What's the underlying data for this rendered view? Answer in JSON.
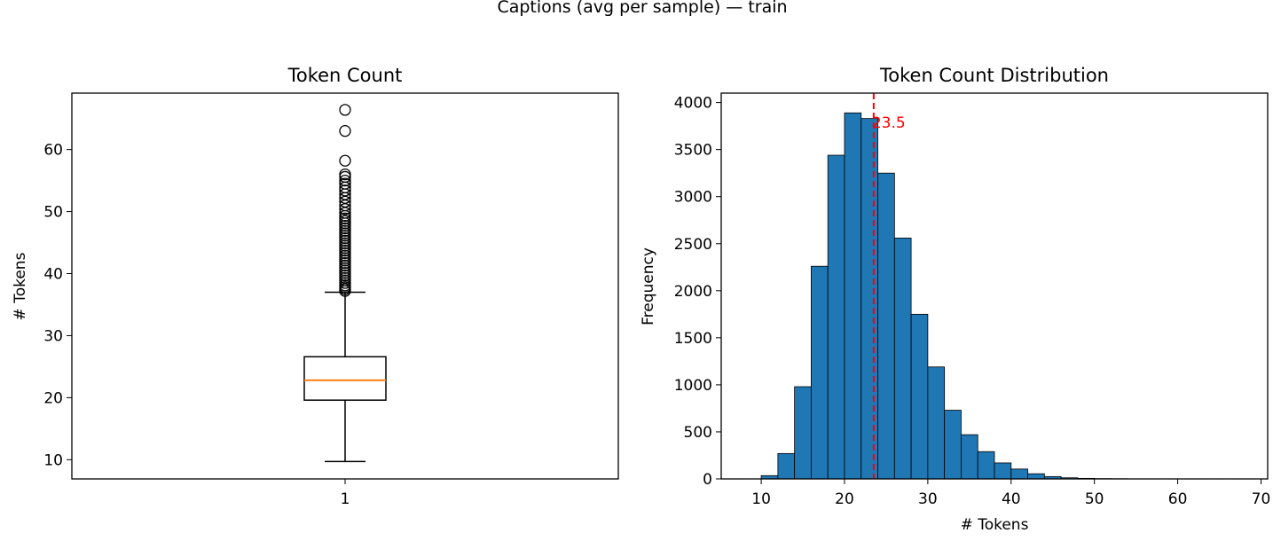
{
  "figure": {
    "suptitle": "Captions (avg per sample) — train"
  },
  "chart_data": [
    {
      "type": "box",
      "title": "Token Count",
      "xlabel": "",
      "ylabel": "# Tokens",
      "categories": [
        "1"
      ],
      "ylim": [
        6.9,
        69.1
      ],
      "yticks": [
        10,
        20,
        30,
        40,
        50,
        60
      ],
      "box": {
        "whisker_low": 9.7,
        "q1": 19.6,
        "median": 22.8,
        "q3": 26.6,
        "whisker_high": 37.0
      },
      "outliers": [
        37.2,
        37.5,
        37.8,
        38.1,
        38.5,
        38.9,
        39.3,
        39.7,
        40.1,
        40.5,
        40.9,
        41.3,
        41.7,
        42.1,
        42.5,
        42.9,
        43.3,
        43.7,
        44.1,
        44.5,
        44.9,
        45.3,
        45.7,
        46.1,
        46.5,
        46.9,
        47.3,
        47.7,
        48.1,
        48.5,
        48.9,
        49.3,
        49.8,
        50.4,
        51.0,
        51.6,
        52.2,
        52.8,
        53.4,
        53.9,
        54.5,
        55.0,
        55.6,
        56.0,
        58.2,
        63.0,
        66.4
      ],
      "colors": {
        "box": "#000000",
        "median": "#ff7f0e"
      }
    },
    {
      "type": "histogram",
      "title": "Token Count Distribution",
      "xlabel": "# Tokens",
      "ylabel": "Frequency",
      "xlim": [
        5.2,
        70.8
      ],
      "ylim": [
        0,
        4100
      ],
      "xticks": [
        10,
        20,
        30,
        40,
        50,
        60,
        70
      ],
      "yticks": [
        0,
        500,
        1000,
        1500,
        2000,
        2500,
        3000,
        3500,
        4000
      ],
      "bin_start": 10,
      "bin_width": 2,
      "counts": [
        35,
        270,
        980,
        2260,
        3440,
        3890,
        3830,
        3250,
        2560,
        1750,
        1190,
        730,
        470,
        290,
        170,
        105,
        55,
        25,
        12,
        6,
        3,
        2,
        1,
        1,
        0,
        0,
        0,
        1
      ],
      "mean_line": {
        "value": 23.5,
        "label": "23.5",
        "color": "#ff0000"
      },
      "colors": {
        "bar": "#1f77b4",
        "edge": "#000000"
      }
    }
  ]
}
